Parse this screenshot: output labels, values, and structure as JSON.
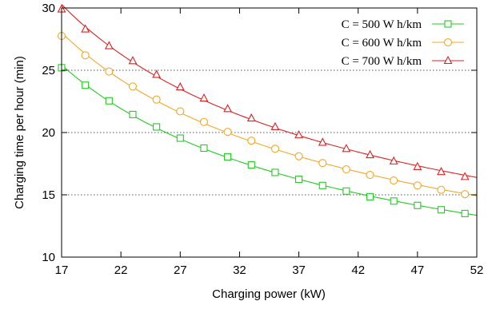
{
  "chart_data": {
    "type": "line",
    "title": "",
    "xlabel": "Charging power (kW)",
    "ylabel": "Charging time per hour (min)",
    "xlim": [
      17,
      52
    ],
    "ylim": [
      10,
      30
    ],
    "xticks": [
      17,
      22,
      27,
      32,
      37,
      42,
      47,
      52
    ],
    "yticks": [
      10,
      15,
      20,
      25,
      30
    ],
    "grid": "horizontal dotted (y = 15, 20, 25)",
    "legend_position": "top-right",
    "series": [
      {
        "name": "C = 500 W h/km",
        "color": "#22cc22",
        "marker": "square",
        "x": [
          17,
          19,
          21,
          23,
          25,
          27,
          29,
          31,
          33,
          35,
          37,
          39,
          41,
          43,
          45,
          47,
          49,
          51
        ],
        "values": [
          25.2,
          23.8,
          22.55,
          21.45,
          20.45,
          19.55,
          18.75,
          18.05,
          17.4,
          16.8,
          16.25,
          15.75,
          15.3,
          14.85,
          14.5,
          14.15,
          13.8,
          13.5
        ]
      },
      {
        "name": "C = 600 W h/km",
        "color": "#f5a623",
        "marker": "circle",
        "x": [
          17,
          19,
          21,
          23,
          25,
          27,
          29,
          31,
          33,
          35,
          37,
          39,
          41,
          43,
          45,
          47,
          49,
          51
        ],
        "values": [
          27.75,
          26.2,
          24.9,
          23.7,
          22.65,
          21.7,
          20.85,
          20.05,
          19.35,
          18.7,
          18.1,
          17.55,
          17.05,
          16.6,
          16.15,
          15.75,
          15.4,
          15.05
        ]
      },
      {
        "name": "C = 700 W h/km",
        "color": "#dd2222",
        "marker": "triangle",
        "x": [
          17,
          19,
          21,
          23,
          25,
          27,
          29,
          31,
          33,
          35,
          37,
          39,
          41,
          43,
          45,
          47,
          49,
          51
        ],
        "values": [
          29.9,
          28.3,
          26.95,
          25.75,
          24.65,
          23.65,
          22.75,
          21.9,
          21.15,
          20.45,
          19.8,
          19.2,
          18.7,
          18.2,
          17.7,
          17.25,
          16.85,
          16.45
        ]
      }
    ]
  }
}
